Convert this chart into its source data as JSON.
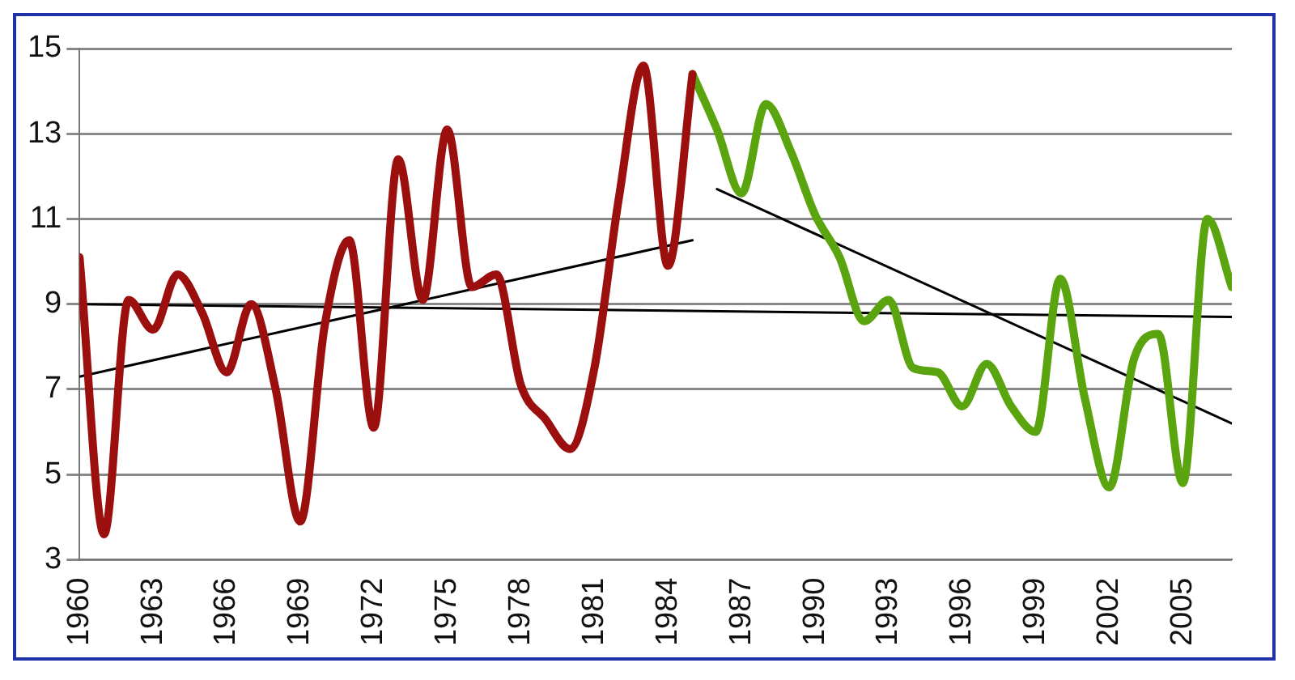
{
  "chart_data": {
    "type": "line",
    "xlim": [
      1960,
      2007
    ],
    "xticks": [
      1960,
      1963,
      1966,
      1969,
      1972,
      1975,
      1978,
      1981,
      1984,
      1987,
      1990,
      1993,
      1996,
      1999,
      2002,
      2005
    ],
    "ylim": [
      3,
      15
    ],
    "yticks": [
      3,
      5,
      7,
      9,
      11,
      13,
      15
    ],
    "grid": "y",
    "legend": false,
    "marker": "none",
    "line_style": "solid",
    "series": [
      {
        "color": "#9b0f0f",
        "x": [
          1960,
          1961,
          1962,
          1963,
          1964,
          1965,
          1966,
          1967,
          1968,
          1969,
          1970,
          1971,
          1972,
          1973,
          1974,
          1975,
          1976,
          1977,
          1978,
          1979,
          1980,
          1981,
          1982,
          1983,
          1984,
          1985
        ],
        "values": [
          10.1,
          3.6,
          9.1,
          8.4,
          9.7,
          8.8,
          7.4,
          9.0,
          7.0,
          3.9,
          8.5,
          10.5,
          6.1,
          12.4,
          9.1,
          13.1,
          9.4,
          9.7,
          7.1,
          6.3,
          5.6,
          7.5,
          11.5,
          14.6,
          9.9,
          14.4
        ]
      },
      {
        "color": "#5aa50f",
        "x": [
          1985,
          1986,
          1987,
          1988,
          1989,
          1990,
          1991,
          1992,
          1993,
          1994,
          1995,
          1996,
          1997,
          1998,
          1999,
          2000,
          2001,
          2002,
          2003,
          2004,
          2005,
          2006,
          2007
        ],
        "values": [
          14.4,
          13.1,
          11.6,
          13.7,
          12.6,
          11.1,
          10.1,
          8.6,
          9.1,
          7.5,
          7.4,
          6.6,
          7.6,
          6.6,
          6.0,
          9.6,
          6.8,
          4.7,
          7.7,
          8.3,
          4.8,
          11.0,
          9.4
        ]
      },
      {
        "color": "#000000",
        "x": [
          1960,
          1985
        ],
        "values": [
          7.3,
          10.5
        ]
      },
      {
        "color": "#000000",
        "x": [
          1986,
          2007
        ],
        "values": [
          11.7,
          6.2
        ]
      },
      {
        "color": "#000000",
        "x": [
          1960,
          2007
        ],
        "values": [
          9.0,
          8.7
        ]
      }
    ]
  }
}
